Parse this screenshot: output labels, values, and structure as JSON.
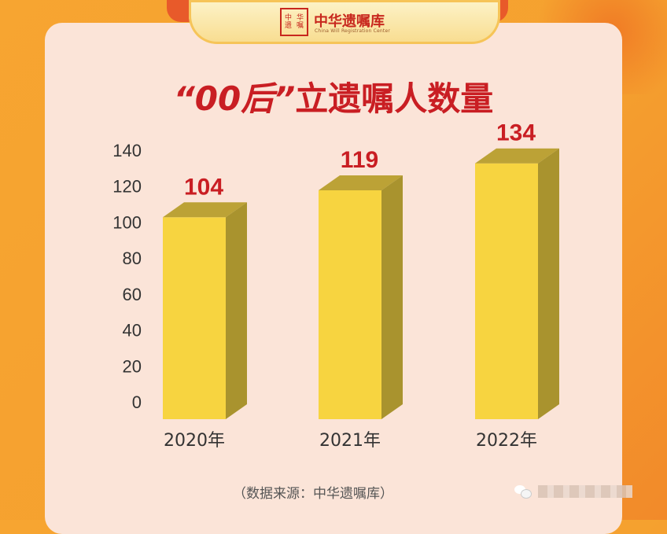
{
  "brand": {
    "seal": [
      "中",
      "华",
      "遗",
      "嘱",
      "库"
    ],
    "name": "中华遗嘱库",
    "english": "China Will Registration Center"
  },
  "title": {
    "open_quote": "“",
    "highlight": "00后",
    "close_quote": "”",
    "rest": "立遗嘱人数量"
  },
  "source": "（数据来源：中华遗嘱库）",
  "chart_data": {
    "type": "bar",
    "title": "“00后”立遗嘱人数量",
    "categories": [
      "2020年",
      "2021年",
      "2022年"
    ],
    "values": [
      104,
      119,
      134
    ],
    "ylim": [
      0,
      140
    ],
    "yticks": [
      0,
      20,
      40,
      60,
      80,
      100,
      120,
      140
    ],
    "grid": false,
    "colors": {
      "bar_front": "#f7d440",
      "bar_side": "#a9932e",
      "bar_top": "#bca236",
      "value_label": "#c91e23",
      "axis_text": "#333333"
    }
  }
}
